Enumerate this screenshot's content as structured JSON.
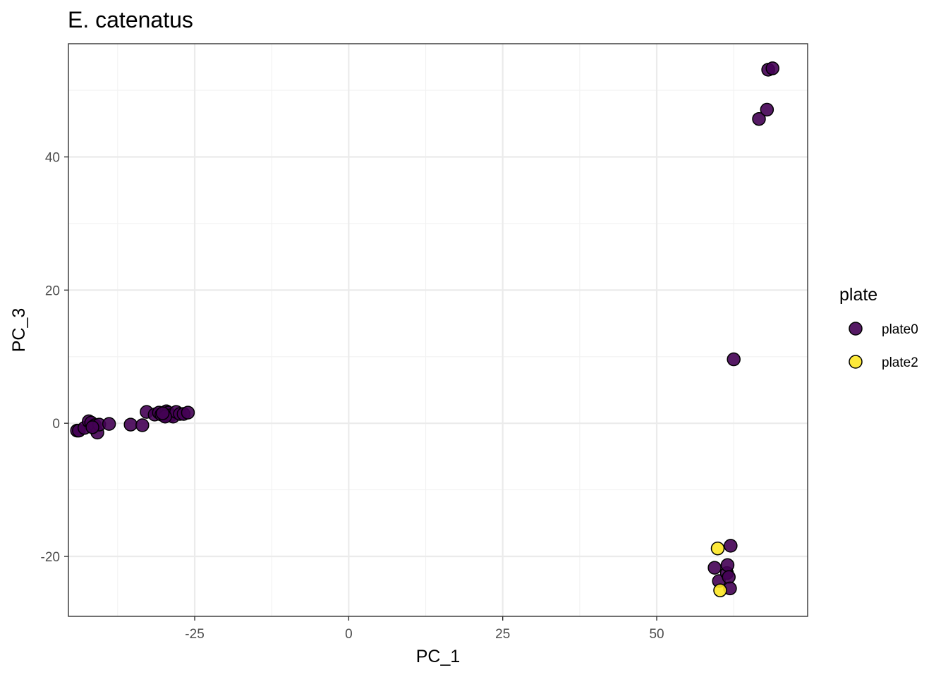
{
  "colors": {
    "plate0": "#440154",
    "plate2": "#FDE725",
    "grid_major": "#EBEBEB",
    "grid_minor": "#F2F2F2",
    "panel_border": "#333333",
    "point_outline": "#000000"
  },
  "chart_data": {
    "type": "scatter",
    "title": "E. catenatus",
    "xlabel": "PC_1",
    "ylabel": "PC_3",
    "xlim": [
      -45.5,
      74.5
    ],
    "ylim": [
      -29,
      57
    ],
    "xticks": [
      -25,
      0,
      25,
      50
    ],
    "xtick_labels": [
      "-25",
      "0",
      "25",
      "50"
    ],
    "yticks": [
      -20,
      0,
      20,
      40
    ],
    "ytick_labels": [
      "-20",
      "0",
      "20",
      "40"
    ],
    "grid": true,
    "legend": {
      "title": "plate",
      "position": "right",
      "entries": [
        "plate0",
        "plate2"
      ]
    },
    "series": [
      {
        "name": "plate0",
        "points": [
          [
            -44.1,
            -1.1
          ],
          [
            -43.8,
            -1.1
          ],
          [
            -42.9,
            -0.7
          ],
          [
            -42.2,
            0.3
          ],
          [
            -41.8,
            0.1
          ],
          [
            -41.5,
            -0.5
          ],
          [
            -41.2,
            -0.3
          ],
          [
            -40.8,
            -1.4
          ],
          [
            -40.5,
            -0.2
          ],
          [
            -38.9,
            -0.1
          ],
          [
            -35.4,
            -0.2
          ],
          [
            -33.5,
            -0.3
          ],
          [
            -32.8,
            1.7
          ],
          [
            -31.5,
            1.3
          ],
          [
            -30.8,
            1.6
          ],
          [
            -30.4,
            1.3
          ],
          [
            -29.8,
            1.2
          ],
          [
            -29.6,
            1.8
          ],
          [
            -29.3,
            1.6
          ],
          [
            -28.9,
            1.2
          ],
          [
            -28.5,
            1.0
          ],
          [
            -28.0,
            1.7
          ],
          [
            -27.4,
            1.4
          ],
          [
            -26.8,
            1.4
          ],
          [
            -26.1,
            1.6
          ],
          [
            -29.8,
            1.0
          ],
          [
            -30.2,
            1.5
          ],
          [
            -41.6,
            -0.6
          ],
          [
            62.5,
            9.6
          ],
          [
            66.6,
            45.7
          ],
          [
            67.9,
            47.1
          ],
          [
            68.1,
            53.1
          ],
          [
            68.8,
            53.3
          ],
          [
            59.4,
            -21.7
          ],
          [
            60.1,
            -23.7
          ],
          [
            61.4,
            -22.5
          ],
          [
            61.5,
            -21.3
          ],
          [
            61.7,
            -23.1
          ],
          [
            61.9,
            -24.8
          ],
          [
            62.0,
            -18.4
          ]
        ]
      },
      {
        "name": "plate2",
        "points": [
          [
            59.9,
            -18.8
          ],
          [
            60.3,
            -25.1
          ]
        ]
      }
    ]
  }
}
